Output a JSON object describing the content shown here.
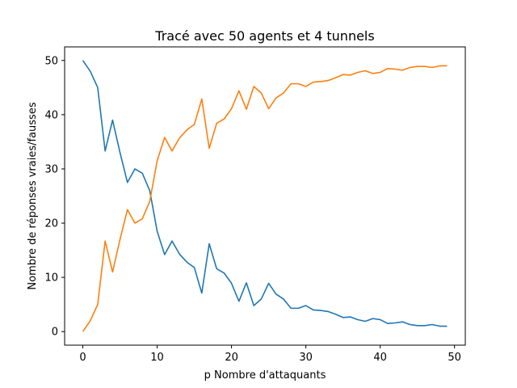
{
  "chart_data": {
    "type": "line",
    "title": "Tracé avec 50 agents et 4 tunnels",
    "xlabel": "p Nombre d'attaquants",
    "ylabel": "Nombre de réponses vraies/fausses",
    "xlim": [
      -2.45,
      51.45
    ],
    "ylim": [
      -2.5,
      52.5
    ],
    "xticks": [
      0,
      10,
      20,
      30,
      40,
      50
    ],
    "yticks": [
      0,
      10,
      20,
      30,
      40,
      50
    ],
    "grid": false,
    "x": [
      0,
      1,
      2,
      3,
      4,
      5,
      6,
      7,
      8,
      9,
      10,
      11,
      12,
      13,
      14,
      15,
      16,
      17,
      18,
      19,
      20,
      21,
      22,
      23,
      24,
      25,
      26,
      27,
      28,
      29,
      30,
      31,
      32,
      33,
      34,
      35,
      36,
      37,
      38,
      39,
      40,
      41,
      42,
      43,
      44,
      45,
      46,
      47,
      48,
      49
    ],
    "series": [
      {
        "color": "#1f77b4",
        "values": [
          50,
          48,
          45,
          33.3,
          39,
          33,
          27.5,
          30,
          29.2,
          26,
          18.5,
          14.2,
          16.7,
          14.3,
          12.8,
          11.8,
          7.1,
          16.2,
          11.6,
          10.8,
          8.9,
          5.6,
          9,
          4.8,
          6,
          8.9,
          6.9,
          6,
          4.3,
          4.3,
          4.8,
          4,
          3.9,
          3.7,
          3.2,
          2.6,
          2.7,
          2.2,
          1.9,
          2.4,
          2.2,
          1.5,
          1.6,
          1.8,
          1.3,
          1.1,
          1.1,
          1.3,
          1.0,
          1.0
        ]
      },
      {
        "color": "#ff7f0e",
        "values": [
          0,
          2,
          5,
          16.7,
          11,
          17,
          22.5,
          20,
          20.8,
          24,
          31.5,
          35.8,
          33.3,
          35.7,
          37.2,
          38.2,
          42.9,
          33.8,
          38.4,
          39.2,
          41.1,
          44.4,
          41,
          45.2,
          44,
          41.1,
          43.1,
          44,
          45.7,
          45.7,
          45.2,
          46,
          46.1,
          46.3,
          46.8,
          47.4,
          47.3,
          47.8,
          48.1,
          47.6,
          47.8,
          48.5,
          48.4,
          48.2,
          48.7,
          48.9,
          48.9,
          48.7,
          49.0,
          49.0
        ]
      }
    ]
  }
}
